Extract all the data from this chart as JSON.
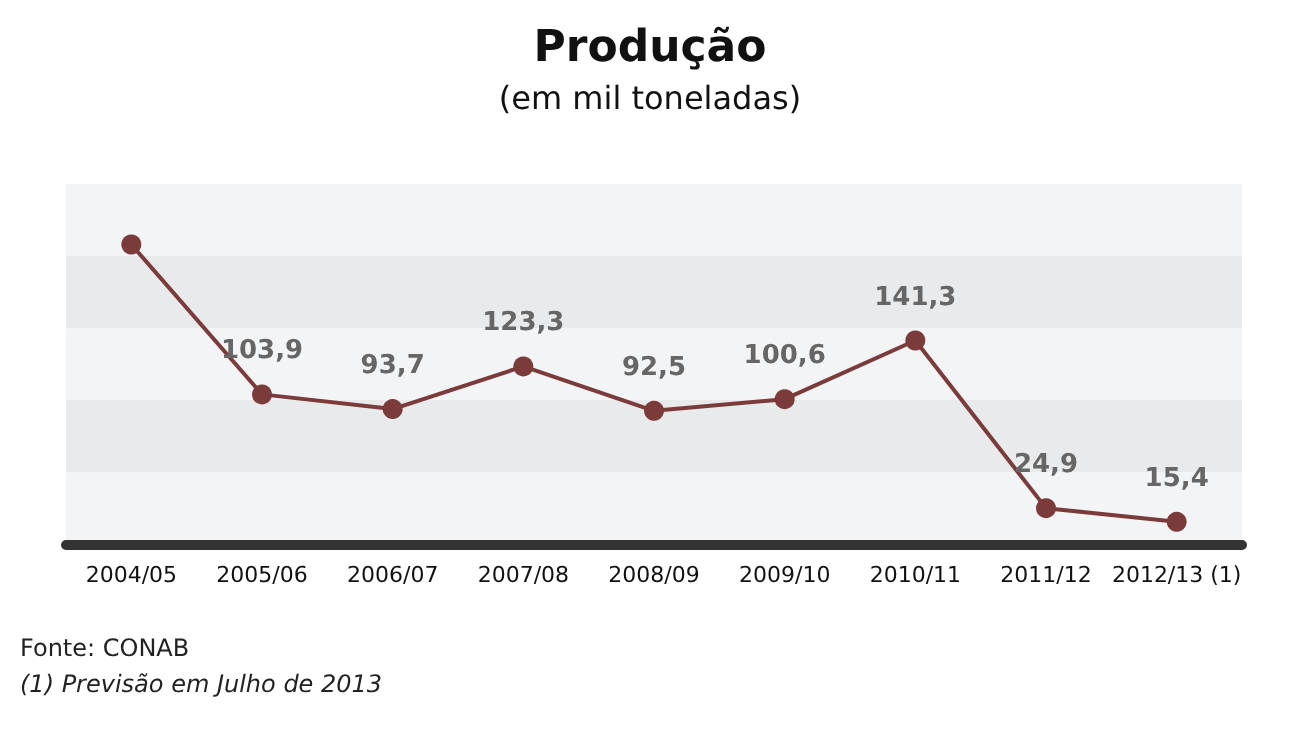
{
  "chart_data": {
    "type": "line",
    "title": "Produção",
    "subtitle": "(em mil toneladas)",
    "categories": [
      "2004/05",
      "2005/06",
      "2006/07",
      "2007/08",
      "2008/09",
      "2009/10",
      "2010/11",
      "2011/12",
      "2012/13 (1)"
    ],
    "series": [
      {
        "color": "#7b3b3b",
        "values": [
          208,
          103.9,
          93.7,
          123.3,
          92.5,
          100.6,
          141.3,
          24.9,
          15.4
        ],
        "value_labels": [
          null,
          "103,9",
          "93,7",
          "123,3",
          "92,5",
          "100,6",
          "141,3",
          "24,9",
          "15,4"
        ]
      }
    ],
    "tick_labels": "x",
    "marker": "circle",
    "line_style": "solid",
    "annotations": [
      "Fonte: CONAB",
      "(1) Previsão em Julho de 2013"
    ]
  }
}
